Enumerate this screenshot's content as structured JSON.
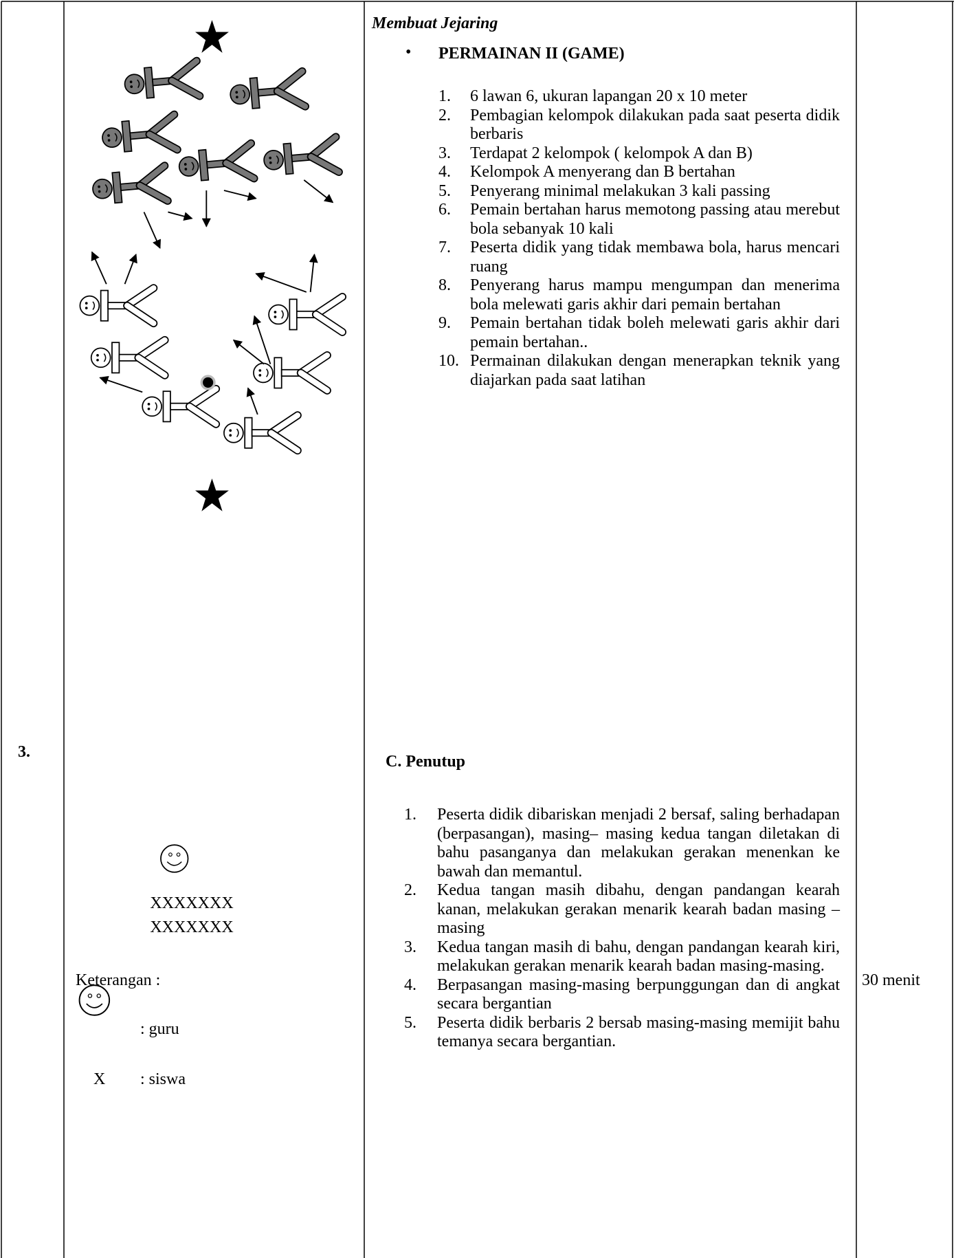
{
  "row": {
    "number": "3.",
    "diagram": {
      "formation": [
        "XXXXXXX",
        "XXXXXXX"
      ],
      "legend_title": "Keterangan :",
      "legend": [
        {
          "label": ": guru"
        },
        {
          "symbol": "X",
          "label": ": siswa"
        }
      ]
    },
    "activity": {
      "title": "Membuat Jejaring",
      "game_title": "PERMAINAN II (GAME)",
      "game_steps": [
        {
          "num": "1.",
          "text": "6 lawan 6, ukuran lapangan 20 x 10 meter"
        },
        {
          "num": "2.",
          "text": "Pembagian kelompok dilakukan pada saat peserta didik berbaris"
        },
        {
          "num": "3.",
          "text": "Terdapat 2 kelompok ( kelompok A dan B)"
        },
        {
          "num": "4.",
          "text": "Kelompok A menyerang dan B bertahan"
        },
        {
          "num": "5.",
          "text": "Penyerang minimal melakukan 3 kali passing"
        },
        {
          "num": "6.",
          "text": "Pemain bertahan harus memotong passing atau merebut bola sebanyak 10 kali"
        },
        {
          "num": "7.",
          "text": "Peserta didik yang tidak membawa bola, harus mencari ruang"
        },
        {
          "num": "8.",
          "text": "Penyerang harus mampu mengumpan dan menerima bola melewati garis akhir dari pemain bertahan"
        },
        {
          "num": "9.",
          "text": "Pemain bertahan tidak boleh melewati garis akhir dari pemain bertahan.."
        },
        {
          "num": "10.",
          "text": "Permainan dilakukan dengan menerapkan teknik yang diajarkan pada saat latihan"
        }
      ],
      "closing_title": "C. Penutup",
      "closing_steps": [
        {
          "num": "1.",
          "text": "Peserta didik dibariskan menjadi 2 bersaf, saling berhadapan (berpasangan), masing– masing kedua tangan diletakan di bahu pasanganya dan melakukan gerakan menenkan ke bawah dan memantul."
        },
        {
          "num": "2.",
          "text": "Kedua tangan masih dibahu, dengan pandangan kearah kanan, melakukan gerakan menarik kearah badan masing – masing"
        },
        {
          "num": "3.",
          "text": "Kedua tangan masih di bahu, dengan pandangan kearah kiri, melakukan gerakan menarik kearah badan masing-masing."
        },
        {
          "num": "4.",
          "text": "Berpasangan masing-masing berpunggungan dan di angkat secara bergantian"
        },
        {
          "num": "5.",
          "text": "Peserta didik berbaris 2 bersab masing-masing memijit bahu temanya secara bergantian."
        }
      ]
    },
    "duration": "30 menit"
  }
}
